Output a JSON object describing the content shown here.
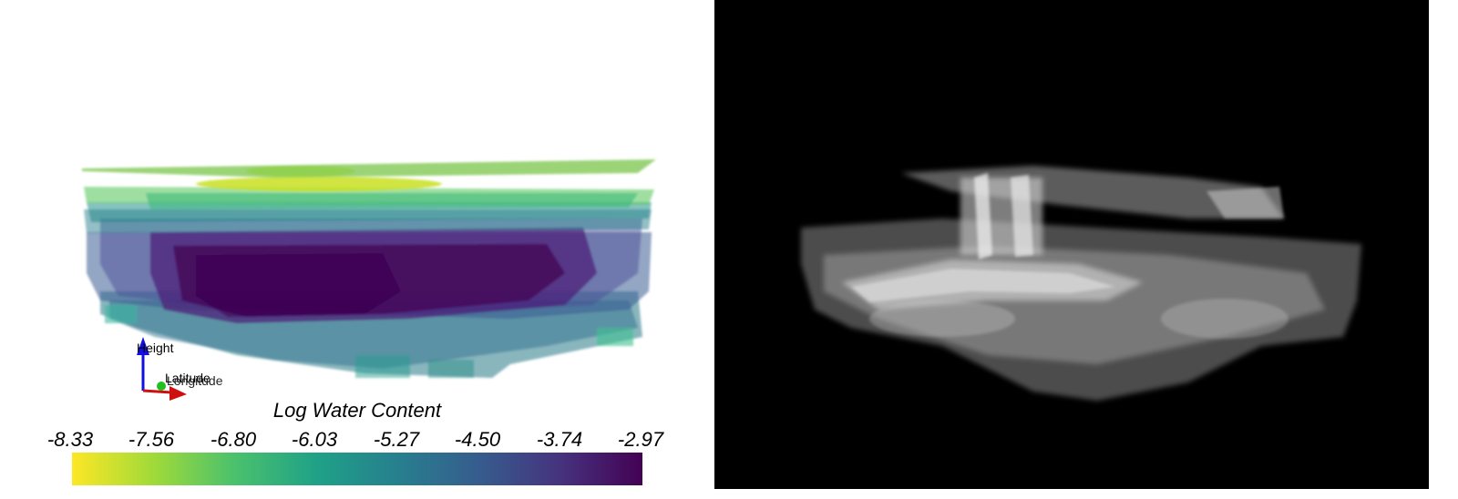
{
  "left_view": {
    "axes": {
      "height_label": "Height",
      "latitude_label": "Latitude",
      "longitude_label": "Longitude"
    },
    "colorbar": {
      "title": "Log Water Content",
      "ticks": [
        "-8.33",
        "-7.56",
        "-6.80",
        "-6.03",
        "-5.27",
        "-4.50",
        "-3.74",
        "-2.97"
      ],
      "min": -8.33,
      "max": -2.97,
      "colormap": [
        "#fde725",
        "#a0da39",
        "#4ac16d",
        "#1fa187",
        "#277f8e",
        "#365c8d",
        "#46327e",
        "#440154"
      ]
    },
    "background": "#ffffff"
  },
  "right_view": {
    "background": "#000000",
    "render_style": "grayscale volume rendering"
  }
}
